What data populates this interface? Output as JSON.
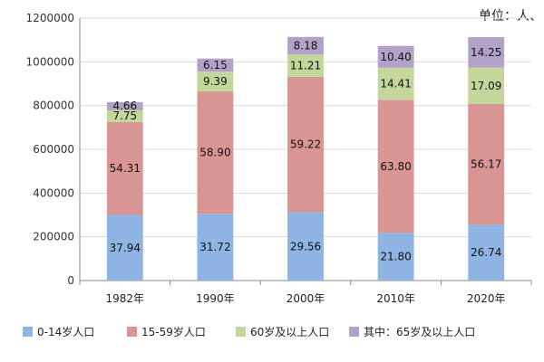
{
  "chart_data": {
    "type": "bar",
    "stacked": true,
    "unit_text": "单位：人、",
    "categories": [
      "1982年",
      "1990年",
      "2000年",
      "2010年",
      "2020年"
    ],
    "ylim": [
      0,
      1200000
    ],
    "yticks": [
      0,
      200000,
      400000,
      600000,
      800000,
      1000000,
      1200000
    ],
    "grid": true,
    "legend_position": "bottom",
    "series": [
      {
        "name": "0-14岁人口",
        "color": "#8eb4e3",
        "totals": [
          300000,
          305000,
          312000,
          218000,
          255000
        ],
        "labels": [
          "37.94",
          "31.72",
          "29.56",
          "21.80",
          "26.74"
        ]
      },
      {
        "name": "15-59岁人口",
        "color": "#d99594",
        "totals": [
          425000,
          560000,
          620000,
          608000,
          552000
        ],
        "labels": [
          "54.31",
          "58.90",
          "59.22",
          "63.80",
          "56.17"
        ]
      },
      {
        "name": "60岁及以上人口",
        "color": "#c3d69b",
        "totals": [
          55000,
          90000,
          102000,
          147000,
          167000
        ],
        "labels": [
          "7.75",
          "9.39",
          "11.21",
          "14.41",
          "17.09"
        ]
      },
      {
        "name": "其中：65岁及以上人口",
        "color": "#b3a2c7",
        "totals": [
          36000,
          60000,
          80000,
          100000,
          139000
        ],
        "labels": [
          "4.66",
          "6.15",
          "8.18",
          "10.40",
          "14.25"
        ]
      }
    ]
  }
}
